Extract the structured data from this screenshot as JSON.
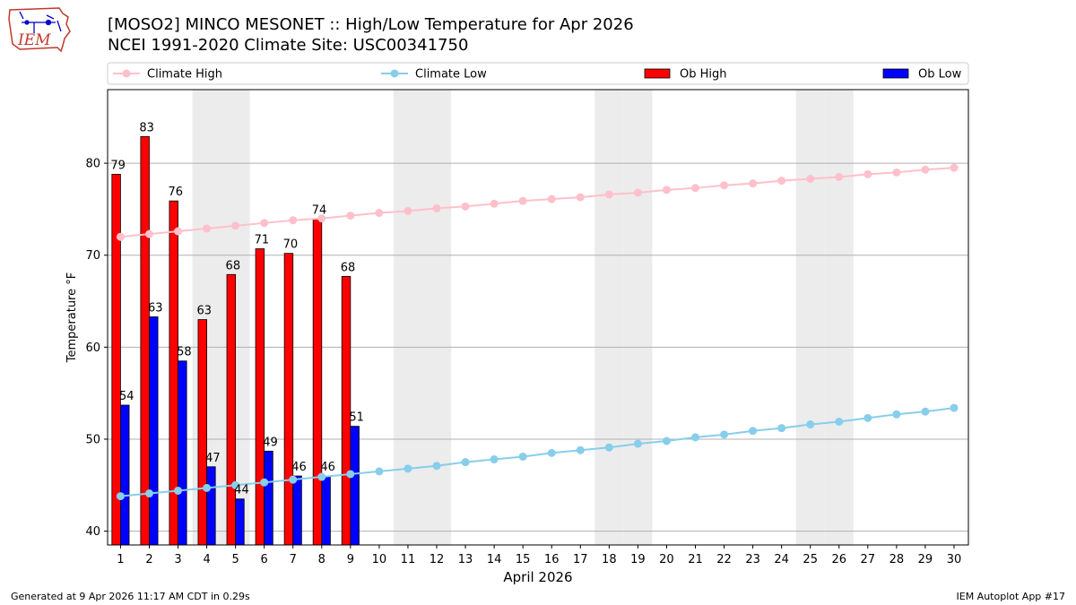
{
  "header": {
    "title_line1": "[MOSO2] MINCO MESONET :: High/Low Temperature for Apr 2026",
    "title_line2": "NCEI 1991-2020 Climate Site: USC00341750",
    "logo_text": "IEM"
  },
  "footer": {
    "generated": "Generated at 9 Apr 2026 11:17 AM CDT in 0.29s",
    "app": "IEM Autoplot App #17"
  },
  "colors": {
    "ob_high": "#ff0000",
    "ob_low": "#0000ff",
    "climate_high": "#ffc0cb",
    "climate_low": "#87ceeb",
    "weekend_shade": "#ececec"
  },
  "chart_data": {
    "type": "bar",
    "xlabel": "April 2026",
    "ylabel": "Temperature °F",
    "ylim": [
      38.5,
      88
    ],
    "xlim": [
      0.55,
      30.5
    ],
    "grid": "horizontal",
    "legend_placement": "top, above plot",
    "yticks": [
      40,
      50,
      60,
      70,
      80
    ],
    "days": [
      1,
      2,
      3,
      4,
      5,
      6,
      7,
      8,
      9,
      10,
      11,
      12,
      13,
      14,
      15,
      16,
      17,
      18,
      19,
      20,
      21,
      22,
      23,
      24,
      25,
      26,
      27,
      28,
      29,
      30
    ],
    "weekend_days": [
      4,
      5,
      11,
      12,
      18,
      19,
      25,
      26
    ],
    "legend": [
      {
        "label": "Climate High",
        "kind": "line",
        "color": "#ffc0cb"
      },
      {
        "label": "Climate Low",
        "kind": "line",
        "color": "#87ceeb"
      },
      {
        "label": "Ob High",
        "kind": "bar",
        "color": "#ff0000"
      },
      {
        "label": "Ob Low",
        "kind": "bar",
        "color": "#0000ff"
      }
    ],
    "series": [
      {
        "name": "Ob High",
        "type": "bar",
        "x": [
          1,
          2,
          3,
          4,
          5,
          6,
          7,
          8,
          9
        ],
        "values": [
          78.8,
          82.9,
          75.9,
          63.0,
          67.9,
          70.7,
          70.2,
          73.9,
          67.7
        ],
        "labels": [
          "79",
          "83",
          "76",
          "63",
          "68",
          "71",
          "70",
          "74",
          "68"
        ]
      },
      {
        "name": "Ob Low",
        "type": "bar",
        "x": [
          1,
          2,
          3,
          4,
          5,
          6,
          7,
          8,
          9
        ],
        "values": [
          53.7,
          63.3,
          58.5,
          47.0,
          43.5,
          48.7,
          46.0,
          46.0,
          51.4
        ],
        "labels": [
          "54",
          "63",
          "58",
          "47",
          "44",
          "49",
          "46",
          "46",
          "51"
        ]
      },
      {
        "name": "Climate High",
        "type": "line",
        "x": [
          1,
          2,
          3,
          4,
          5,
          6,
          7,
          8,
          9,
          10,
          11,
          12,
          13,
          14,
          15,
          16,
          17,
          18,
          19,
          20,
          21,
          22,
          23,
          24,
          25,
          26,
          27,
          28,
          29,
          30
        ],
        "values": [
          72.0,
          72.3,
          72.6,
          72.9,
          73.2,
          73.5,
          73.8,
          74.0,
          74.3,
          74.6,
          74.8,
          75.1,
          75.3,
          75.6,
          75.9,
          76.1,
          76.3,
          76.6,
          76.8,
          77.1,
          77.3,
          77.6,
          77.8,
          78.1,
          78.3,
          78.5,
          78.8,
          79.0,
          79.3,
          79.5
        ]
      },
      {
        "name": "Climate Low",
        "type": "line",
        "x": [
          1,
          2,
          3,
          4,
          5,
          6,
          7,
          8,
          9,
          10,
          11,
          12,
          13,
          14,
          15,
          16,
          17,
          18,
          19,
          20,
          21,
          22,
          23,
          24,
          25,
          26,
          27,
          28,
          29,
          30
        ],
        "values": [
          43.8,
          44.1,
          44.4,
          44.7,
          45.0,
          45.3,
          45.6,
          45.9,
          46.2,
          46.5,
          46.8,
          47.1,
          47.5,
          47.8,
          48.1,
          48.5,
          48.8,
          49.1,
          49.5,
          49.8,
          50.2,
          50.5,
          50.9,
          51.2,
          51.6,
          51.9,
          52.3,
          52.7,
          53.0,
          53.4
        ]
      }
    ]
  }
}
